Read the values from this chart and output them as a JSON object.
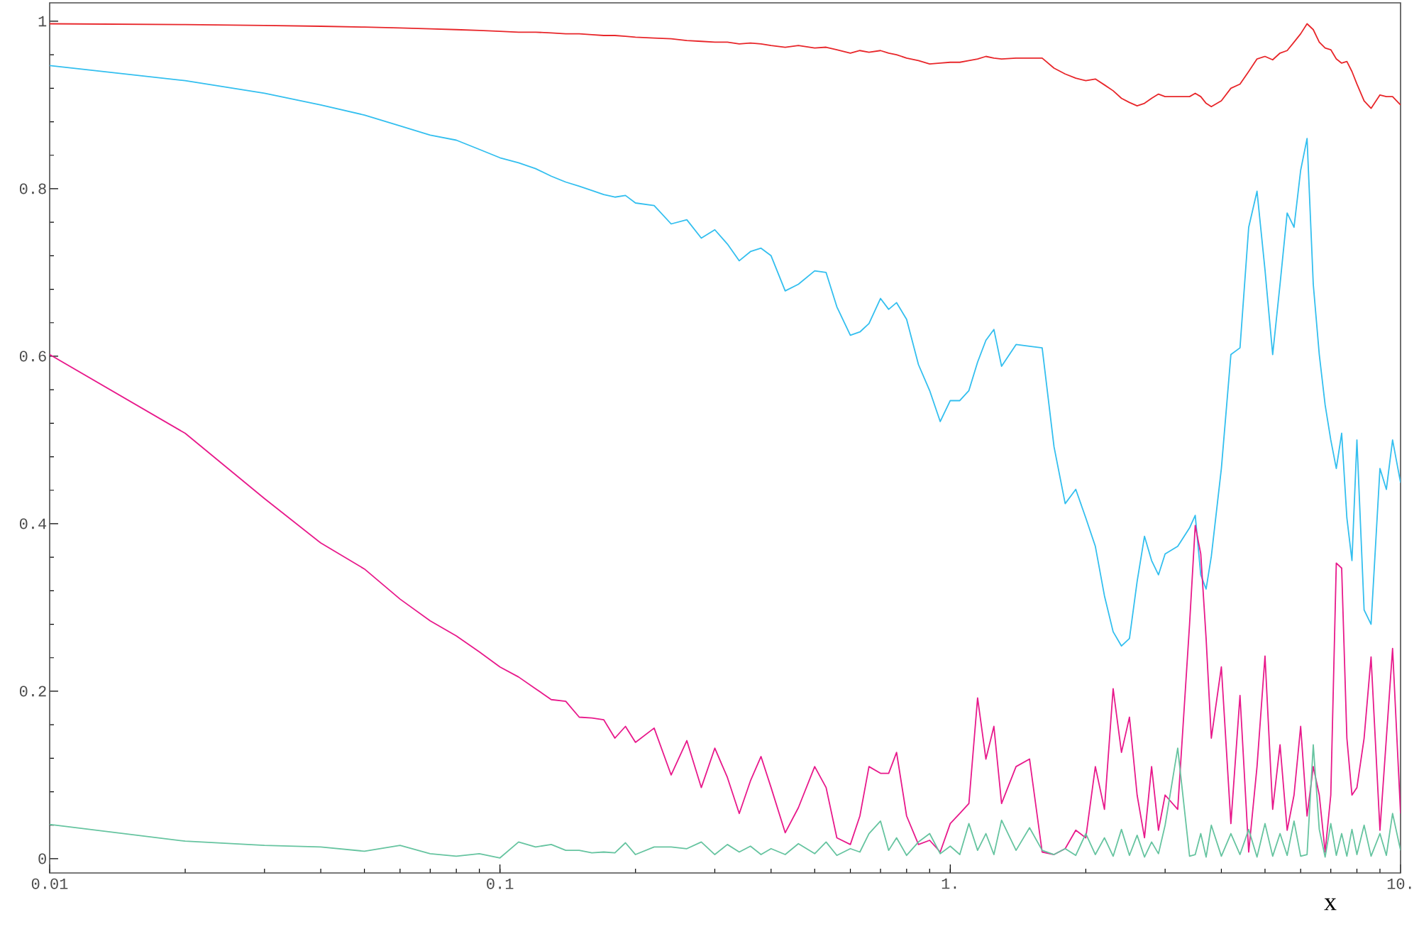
{
  "chart_data": {
    "type": "line",
    "xlabel": "x",
    "log": "x",
    "grid": false,
    "marker": "none",
    "line_style": "solid",
    "xlim": [
      0.01,
      10
    ],
    "ylim": [
      -0.017,
      1.022
    ],
    "xticks": [
      0.01,
      0.1,
      {
        "value": 1,
        "label": "1."
      },
      {
        "value": 10,
        "label": "10."
      }
    ],
    "yticks": [
      0,
      0.2,
      0.4,
      0.6,
      0.8,
      1
    ],
    "x": [
      0.01,
      0.02,
      0.03,
      0.04,
      0.05,
      0.06,
      0.07,
      0.08,
      0.09,
      0.1,
      0.11,
      0.12,
      0.13,
      0.14,
      0.15,
      0.16,
      0.17,
      0.18,
      0.19,
      0.2,
      0.22,
      0.24,
      0.26,
      0.28,
      0.3,
      0.32,
      0.34,
      0.36,
      0.38,
      0.4,
      0.43,
      0.46,
      0.5,
      0.53,
      0.56,
      0.6,
      0.63,
      0.66,
      0.7,
      0.73,
      0.76,
      0.8,
      0.85,
      0.9,
      0.95,
      1,
      1.05,
      1.1,
      1.15,
      1.2,
      1.25,
      1.3,
      1.4,
      1.5,
      1.6,
      1.7,
      1.8,
      1.9,
      2,
      2.1,
      2.2,
      2.3,
      2.4,
      2.5,
      2.6,
      2.7,
      2.8,
      2.9,
      3,
      3.2,
      3.4,
      3.5,
      3.6,
      3.7,
      3.8,
      4,
      4.2,
      4.4,
      4.6,
      4.8,
      5,
      5.2,
      5.4,
      5.6,
      5.8,
      6,
      6.2,
      6.4,
      6.6,
      6.8,
      7,
      7.2,
      7.4,
      7.6,
      7.8,
      8,
      8.3,
      8.6,
      9,
      9.3,
      9.6,
      10
    ],
    "series": [
      {
        "color": "#e8262a",
        "values": [
          0.997,
          0.996,
          0.995,
          0.994,
          0.993,
          0.992,
          0.991,
          0.99,
          0.989,
          0.988,
          0.987,
          0.987,
          0.986,
          0.985,
          0.985,
          0.984,
          0.983,
          0.983,
          0.982,
          0.981,
          0.98,
          0.979,
          0.977,
          0.976,
          0.975,
          0.975,
          0.973,
          0.974,
          0.973,
          0.971,
          0.969,
          0.971,
          0.968,
          0.969,
          0.966,
          0.962,
          0.965,
          0.963,
          0.965,
          0.962,
          0.96,
          0.956,
          0.953,
          0.949,
          0.95,
          0.951,
          0.951,
          0.953,
          0.955,
          0.958,
          0.956,
          0.955,
          0.956,
          0.956,
          0.956,
          0.944,
          0.937,
          0.932,
          0.929,
          0.931,
          0.924,
          0.917,
          0.908,
          0.903,
          0.899,
          0.902,
          0.908,
          0.913,
          0.91,
          0.91,
          0.91,
          0.914,
          0.91,
          0.902,
          0.898,
          0.905,
          0.92,
          0.925,
          0.94,
          0.955,
          0.958,
          0.954,
          0.962,
          0.965,
          0.975,
          0.985,
          0.997,
          0.99,
          0.975,
          0.968,
          0.966,
          0.955,
          0.95,
          0.952,
          0.94,
          0.925,
          0.905,
          0.896,
          0.912,
          0.91,
          0.91,
          0.9
        ]
      },
      {
        "color": "#33bfef",
        "values": [
          0.947,
          0.929,
          0.914,
          0.9,
          0.888,
          0.875,
          0.864,
          0.858,
          0.847,
          0.837,
          0.831,
          0.824,
          0.815,
          0.808,
          0.803,
          0.798,
          0.793,
          0.79,
          0.792,
          0.783,
          0.78,
          0.758,
          0.763,
          0.741,
          0.751,
          0.734,
          0.714,
          0.725,
          0.729,
          0.72,
          0.678,
          0.686,
          0.702,
          0.7,
          0.659,
          0.625,
          0.629,
          0.639,
          0.669,
          0.656,
          0.664,
          0.644,
          0.59,
          0.559,
          0.522,
          0.547,
          0.547,
          0.559,
          0.593,
          0.619,
          0.632,
          0.588,
          0.614,
          0.612,
          0.61,
          0.492,
          0.424,
          0.441,
          0.407,
          0.373,
          0.314,
          0.271,
          0.254,
          0.263,
          0.331,
          0.385,
          0.356,
          0.339,
          0.364,
          0.373,
          0.395,
          0.41,
          0.339,
          0.322,
          0.361,
          0.466,
          0.602,
          0.61,
          0.754,
          0.797,
          0.703,
          0.602,
          0.686,
          0.771,
          0.754,
          0.822,
          0.86,
          0.686,
          0.602,
          0.542,
          0.5,
          0.466,
          0.508,
          0.407,
          0.356,
          0.5,
          0.297,
          0.28,
          0.466,
          0.441,
          0.5,
          0.449
        ]
      },
      {
        "color": "#e8198b",
        "values": [
          0.602,
          0.508,
          0.43,
          0.377,
          0.346,
          0.31,
          0.284,
          0.266,
          0.247,
          0.229,
          0.217,
          0.203,
          0.19,
          0.188,
          0.169,
          0.168,
          0.166,
          0.144,
          0.158,
          0.139,
          0.156,
          0.1,
          0.141,
          0.085,
          0.132,
          0.097,
          0.054,
          0.093,
          0.122,
          0.085,
          0.031,
          0.061,
          0.11,
          0.085,
          0.025,
          0.017,
          0.051,
          0.11,
          0.102,
          0.102,
          0.127,
          0.051,
          0.017,
          0.022,
          0.008,
          0.042,
          0.054,
          0.066,
          0.192,
          0.119,
          0.158,
          0.066,
          0.11,
          0.119,
          0.008,
          0.005,
          0.012,
          0.034,
          0.025,
          0.11,
          0.059,
          0.203,
          0.127,
          0.169,
          0.076,
          0.025,
          0.11,
          0.034,
          0.076,
          0.059,
          0.28,
          0.398,
          0.364,
          0.263,
          0.144,
          0.229,
          0.042,
          0.195,
          0.008,
          0.11,
          0.242,
          0.059,
          0.136,
          0.034,
          0.076,
          0.158,
          0.051,
          0.11,
          0.076,
          0.008,
          0.076,
          0.353,
          0.347,
          0.144,
          0.076,
          0.085,
          0.144,
          0.241,
          0.034,
          0.144,
          0.251,
          0.054
        ]
      },
      {
        "color": "#66c4a0",
        "values": [
          0.041,
          0.021,
          0.016,
          0.014,
          0.009,
          0.016,
          0.006,
          0.003,
          0.006,
          0.001,
          0.02,
          0.014,
          0.017,
          0.01,
          0.01,
          0.007,
          0.008,
          0.007,
          0.019,
          0.005,
          0.014,
          0.014,
          0.012,
          0.02,
          0.005,
          0.017,
          0.008,
          0.015,
          0.005,
          0.012,
          0.005,
          0.018,
          0.006,
          0.02,
          0.004,
          0.012,
          0.008,
          0.03,
          0.045,
          0.01,
          0.025,
          0.004,
          0.02,
          0.03,
          0.006,
          0.015,
          0.005,
          0.042,
          0.01,
          0.03,
          0.005,
          0.046,
          0.01,
          0.037,
          0.01,
          0.005,
          0.012,
          0.004,
          0.03,
          0.005,
          0.025,
          0.003,
          0.035,
          0.004,
          0.028,
          0.002,
          0.02,
          0.006,
          0.04,
          0.132,
          0.003,
          0.005,
          0.03,
          0.002,
          0.04,
          0.003,
          0.03,
          0.005,
          0.035,
          0.002,
          0.042,
          0.003,
          0.03,
          0.004,
          0.045,
          0.003,
          0.005,
          0.136,
          0.035,
          0.002,
          0.042,
          0.004,
          0.03,
          0.003,
          0.035,
          0.005,
          0.04,
          0.003,
          0.03,
          0.004,
          0.054,
          0.01
        ]
      }
    ]
  }
}
